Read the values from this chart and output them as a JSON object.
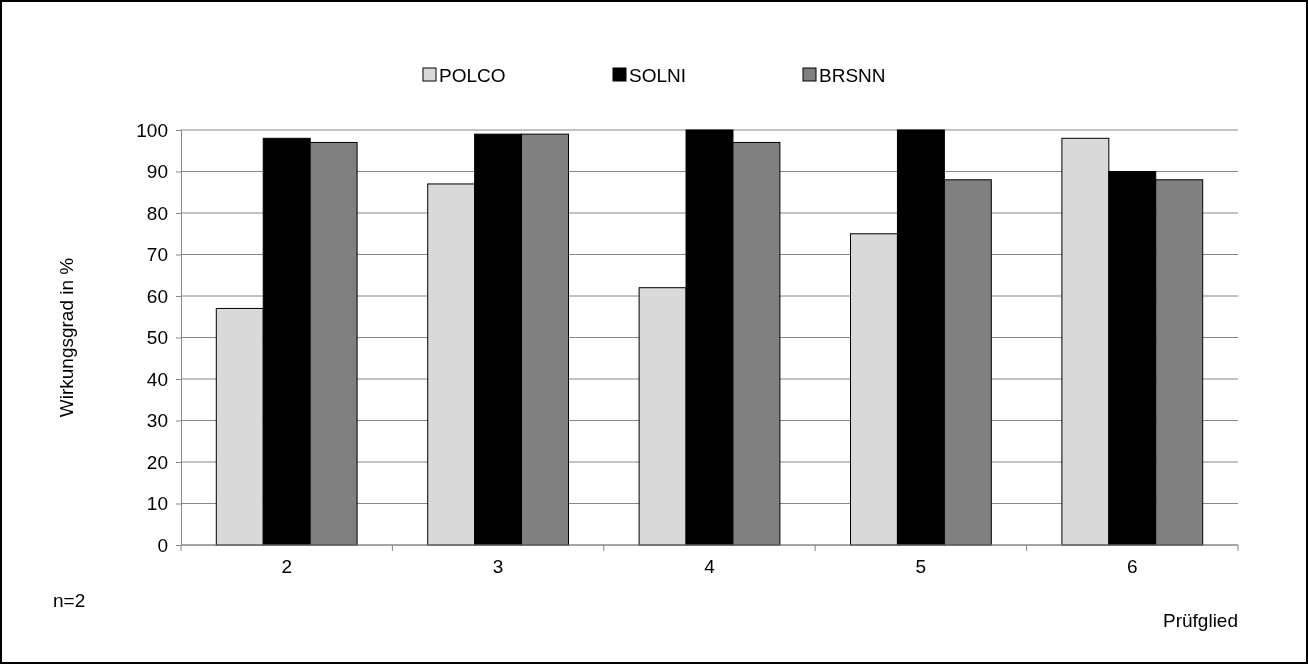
{
  "chart_data": {
    "type": "bar",
    "xlabel": "Prüfglied",
    "ylabel": "Wirkungsgrad in %",
    "categories": [
      "2",
      "3",
      "4",
      "5",
      "6"
    ],
    "series": [
      {
        "name": "POLCO",
        "color": "#d9d9d9",
        "values": [
          57,
          87,
          62,
          75,
          98
        ]
      },
      {
        "name": "SOLNI",
        "color": "#000000",
        "values": [
          98,
          99,
          100,
          100,
          90
        ]
      },
      {
        "name": "BRSNN",
        "color": "#808080",
        "values": [
          97,
          99,
          97,
          88,
          88
        ]
      }
    ],
    "ylim": [
      0,
      100
    ],
    "yticks": [
      0,
      10,
      20,
      30,
      40,
      50,
      60,
      70,
      80,
      90,
      100
    ],
    "grid": "y",
    "legend": "top",
    "annotations": [
      "n=2"
    ]
  }
}
